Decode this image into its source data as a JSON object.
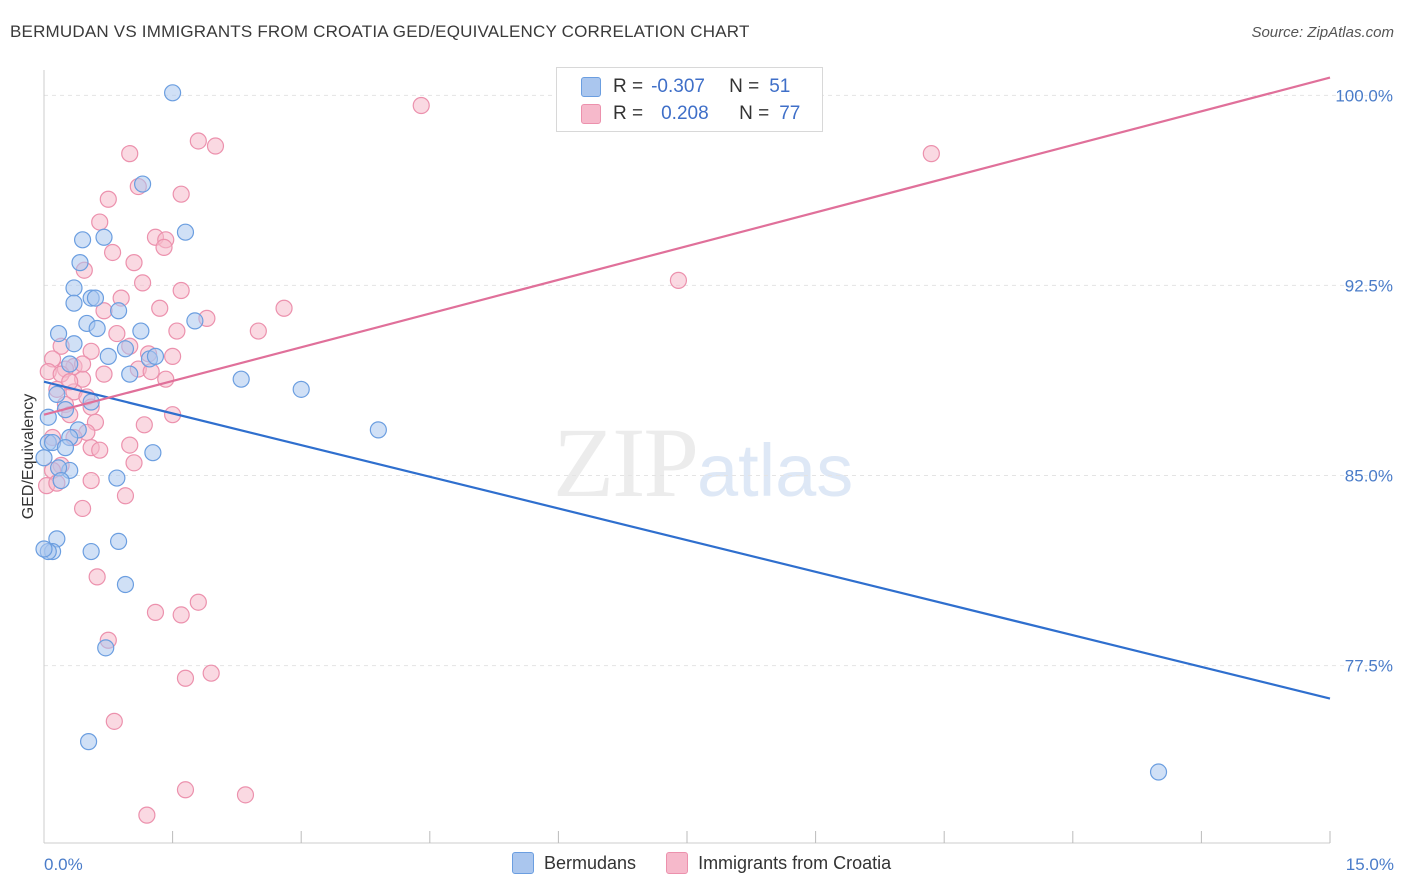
{
  "title": "BERMUDAN VS IMMIGRANTS FROM CROATIA GED/EQUIVALENCY CORRELATION CHART",
  "source": "Source: ZipAtlas.com",
  "watermark": {
    "zip": "ZIP",
    "atlas": "atlas"
  },
  "legend": {
    "rows": [
      {
        "r_label": "R =",
        "r_value": "-0.307",
        "n_label": "N =",
        "n_value": "51"
      },
      {
        "r_label": "R =",
        "r_value": "0.208",
        "n_label": "N =",
        "n_value": "77"
      }
    ]
  },
  "bottom_legend": [
    "Bermudans",
    "Immigrants from Croatia"
  ],
  "colors": {
    "blue_fill": "#aac6ee",
    "blue_stroke": "#6b9ee0",
    "blue_line": "#2f6fce",
    "pink_fill": "#f6b9cb",
    "pink_stroke": "#ec91ad",
    "pink_line": "#e0709a",
    "axis_text": "#4a7cc9",
    "grid": "#e4e4e4"
  },
  "chart_data": {
    "type": "scatter",
    "title": "BERMUDAN VS IMMIGRANTS FROM CROATIA GED/EQUIVALENCY CORRELATION CHART",
    "xlabel": "",
    "ylabel": "GED/Equivalency",
    "xlim": [
      0,
      15
    ],
    "ylim": [
      70.5,
      101
    ],
    "x_tick_labels": [
      "0.0%",
      "15.0%"
    ],
    "y_ticks": [
      77.5,
      85.0,
      92.5,
      100.0
    ],
    "y_tick_labels": [
      "77.5%",
      "85.0%",
      "92.5%",
      "100.0%"
    ],
    "series": [
      {
        "name": "Bermudans",
        "R": -0.307,
        "N": 51,
        "trend": {
          "x": [
            0,
            15
          ],
          "y": [
            88.7,
            76.2
          ]
        },
        "points": [
          [
            1.5,
            100.1
          ],
          [
            1.15,
            96.5
          ],
          [
            0.7,
            94.4
          ],
          [
            0.45,
            94.3
          ],
          [
            1.65,
            94.6
          ],
          [
            0.42,
            93.4
          ],
          [
            0.35,
            92.4
          ],
          [
            0.55,
            92.0
          ],
          [
            0.6,
            92.0
          ],
          [
            0.35,
            91.8
          ],
          [
            0.87,
            91.5
          ],
          [
            0.5,
            91.0
          ],
          [
            0.62,
            90.8
          ],
          [
            1.13,
            90.7
          ],
          [
            0.17,
            90.6
          ],
          [
            1.76,
            91.1
          ],
          [
            0.35,
            90.2
          ],
          [
            0.95,
            90.0
          ],
          [
            0.75,
            89.7
          ],
          [
            1.23,
            89.6
          ],
          [
            1.3,
            89.7
          ],
          [
            0.3,
            89.4
          ],
          [
            1.0,
            89.0
          ],
          [
            2.3,
            88.8
          ],
          [
            3.0,
            88.4
          ],
          [
            0.15,
            88.2
          ],
          [
            0.55,
            87.9
          ],
          [
            0.25,
            87.6
          ],
          [
            0.05,
            87.3
          ],
          [
            3.9,
            86.8
          ],
          [
            0.4,
            86.8
          ],
          [
            0.3,
            86.5
          ],
          [
            0.05,
            86.3
          ],
          [
            0.1,
            86.3
          ],
          [
            0.25,
            86.1
          ],
          [
            1.27,
            85.9
          ],
          [
            0.0,
            85.7
          ],
          [
            0.3,
            85.2
          ],
          [
            0.17,
            85.3
          ],
          [
            0.85,
            84.9
          ],
          [
            0.2,
            84.8
          ],
          [
            0.15,
            82.5
          ],
          [
            0.87,
            82.4
          ],
          [
            0.1,
            82.0
          ],
          [
            0.05,
            82.0
          ],
          [
            0.55,
            82.0
          ],
          [
            0.95,
            80.7
          ],
          [
            0.72,
            78.2
          ],
          [
            0.52,
            74.5
          ],
          [
            13.0,
            73.3
          ],
          [
            0.0,
            82.1
          ]
        ]
      },
      {
        "name": "Immigrants from Croatia",
        "R": 0.208,
        "N": 77,
        "trend": {
          "x": [
            0,
            15
          ],
          "y": [
            87.4,
            100.7
          ]
        },
        "points": [
          [
            4.4,
            99.6
          ],
          [
            1.8,
            98.2
          ],
          [
            2.0,
            98.0
          ],
          [
            1.0,
            97.7
          ],
          [
            10.35,
            97.7
          ],
          [
            1.1,
            96.4
          ],
          [
            1.6,
            96.1
          ],
          [
            0.75,
            95.9
          ],
          [
            0.65,
            95.0
          ],
          [
            1.3,
            94.4
          ],
          [
            1.42,
            94.3
          ],
          [
            0.8,
            93.8
          ],
          [
            1.05,
            93.4
          ],
          [
            1.4,
            94.0
          ],
          [
            0.47,
            93.1
          ],
          [
            1.15,
            92.6
          ],
          [
            7.4,
            92.7
          ],
          [
            1.6,
            92.3
          ],
          [
            0.9,
            92.0
          ],
          [
            1.35,
            91.6
          ],
          [
            0.7,
            91.5
          ],
          [
            2.8,
            91.6
          ],
          [
            1.9,
            91.2
          ],
          [
            2.5,
            90.7
          ],
          [
            1.55,
            90.7
          ],
          [
            0.85,
            90.6
          ],
          [
            1.0,
            90.1
          ],
          [
            0.2,
            90.1
          ],
          [
            0.55,
            89.9
          ],
          [
            1.22,
            89.8
          ],
          [
            1.5,
            89.7
          ],
          [
            0.1,
            89.6
          ],
          [
            0.35,
            89.3
          ],
          [
            0.25,
            89.2
          ],
          [
            0.05,
            89.1
          ],
          [
            0.2,
            89.0
          ],
          [
            1.1,
            89.2
          ],
          [
            0.45,
            88.8
          ],
          [
            1.42,
            88.8
          ],
          [
            0.15,
            88.4
          ],
          [
            0.35,
            88.3
          ],
          [
            0.5,
            88.1
          ],
          [
            0.25,
            87.8
          ],
          [
            0.55,
            87.7
          ],
          [
            1.5,
            87.4
          ],
          [
            0.3,
            87.4
          ],
          [
            0.6,
            87.1
          ],
          [
            1.17,
            87.0
          ],
          [
            0.5,
            86.7
          ],
          [
            0.35,
            86.5
          ],
          [
            0.1,
            86.5
          ],
          [
            1.0,
            86.2
          ],
          [
            0.55,
            86.1
          ],
          [
            0.65,
            86.0
          ],
          [
            0.2,
            85.4
          ],
          [
            1.05,
            85.5
          ],
          [
            0.1,
            85.2
          ],
          [
            0.55,
            84.8
          ],
          [
            0.03,
            84.6
          ],
          [
            0.15,
            84.7
          ],
          [
            0.95,
            84.2
          ],
          [
            0.45,
            83.7
          ],
          [
            0.62,
            81.0
          ],
          [
            1.8,
            80.0
          ],
          [
            1.3,
            79.6
          ],
          [
            1.6,
            79.5
          ],
          [
            0.75,
            78.5
          ],
          [
            1.95,
            77.2
          ],
          [
            1.65,
            77.0
          ],
          [
            0.82,
            75.3
          ],
          [
            1.65,
            72.6
          ],
          [
            2.35,
            72.4
          ],
          [
            1.2,
            71.6
          ],
          [
            0.45,
            89.4
          ],
          [
            0.7,
            89.0
          ],
          [
            0.3,
            88.7
          ],
          [
            1.25,
            89.1
          ]
        ]
      }
    ]
  }
}
